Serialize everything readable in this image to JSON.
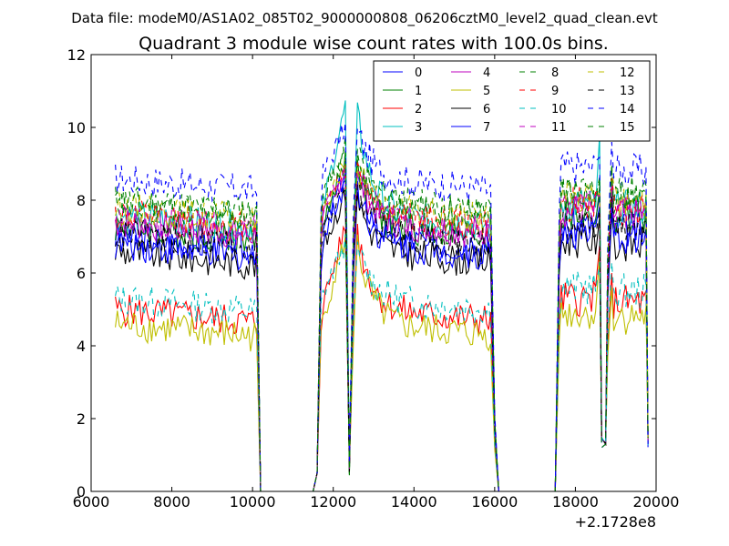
{
  "page": {
    "header": "Data file: modeM0/AS1A02_085T02_9000000808_06206cztM0_level2_quad_clean.evt"
  },
  "chart_data": {
    "type": "line",
    "title": "Quadrant 3 module wise count rates with 100.0s bins.",
    "xlabel": "",
    "ylabel": "",
    "x_offset_label": "+2.1728e8",
    "xlim": [
      6000,
      20000
    ],
    "ylim": [
      0,
      12
    ],
    "x_ticks": [
      "6000",
      "8000",
      "10000",
      "12000",
      "14000",
      "16000",
      "18000",
      "20000"
    ],
    "y_ticks": [
      "0",
      "2",
      "4",
      "6",
      "8",
      "10",
      "12"
    ],
    "grid": false,
    "legend_position": "top-right",
    "legend_columns": 4,
    "segments": [
      {
        "x_start": 6600,
        "x_end": 10100,
        "kind": "plateau"
      },
      {
        "x_start": 10100,
        "x_end": 10200,
        "kind": "drop"
      },
      {
        "x_start": 10200,
        "x_end": 11600,
        "kind": "zero"
      },
      {
        "x_start": 11600,
        "x_end": 12300,
        "kind": "rise-peak"
      },
      {
        "x_start": 12400,
        "x_end": 12400,
        "kind": "dip"
      },
      {
        "x_start": 12600,
        "x_end": 15900,
        "kind": "plateau"
      },
      {
        "x_start": 16100,
        "x_end": 17500,
        "kind": "zero"
      },
      {
        "x_start": 17600,
        "x_end": 18600,
        "kind": "plateau"
      },
      {
        "x_start": 18700,
        "x_end": 18800,
        "kind": "dip"
      },
      {
        "x_start": 18900,
        "x_end": 19800,
        "kind": "plateau"
      }
    ],
    "series": [
      {
        "name": "0",
        "color": "#0000ff",
        "dash": "solid",
        "level": 7.0,
        "peak": 9.0
      },
      {
        "name": "1",
        "color": "#008000",
        "dash": "solid",
        "level": 7.3,
        "peak": 9.3
      },
      {
        "name": "2",
        "color": "#ff0000",
        "dash": "solid",
        "level": 5.0,
        "peak": 7.5
      },
      {
        "name": "3",
        "color": "#00bfbf",
        "dash": "solid",
        "level": 7.6,
        "peak": 10.9
      },
      {
        "name": "4",
        "color": "#bf00bf",
        "dash": "solid",
        "level": 7.4,
        "peak": 9.0
      },
      {
        "name": "5",
        "color": "#bfbf00",
        "dash": "solid",
        "level": 4.6,
        "peak": 7.2
      },
      {
        "name": "6",
        "color": "#000000",
        "dash": "solid",
        "level": 6.6,
        "peak": 8.4
      },
      {
        "name": "7",
        "color": "#0000ff",
        "dash": "solid",
        "level": 6.8,
        "peak": 8.7
      },
      {
        "name": "8",
        "color": "#008000",
        "dash": "dashed",
        "level": 8.0,
        "peak": 9.6
      },
      {
        "name": "9",
        "color": "#ff0000",
        "dash": "dashed",
        "level": 7.6,
        "peak": 9.2
      },
      {
        "name": "10",
        "color": "#00bfbf",
        "dash": "dashed",
        "level": 5.3,
        "peak": 7.0
      },
      {
        "name": "11",
        "color": "#bf00bf",
        "dash": "dashed",
        "level": 7.5,
        "peak": 9.0
      },
      {
        "name": "12",
        "color": "#bfbf00",
        "dash": "dashed",
        "level": 7.8,
        "peak": 9.1
      },
      {
        "name": "13",
        "color": "#000000",
        "dash": "dashed",
        "level": 7.1,
        "peak": 8.6
      },
      {
        "name": "14",
        "color": "#0000ff",
        "dash": "dashed",
        "level": 8.6,
        "peak": 10.2
      },
      {
        "name": "15",
        "color": "#008000",
        "dash": "dashed",
        "level": 7.9,
        "peak": 9.5
      }
    ]
  }
}
